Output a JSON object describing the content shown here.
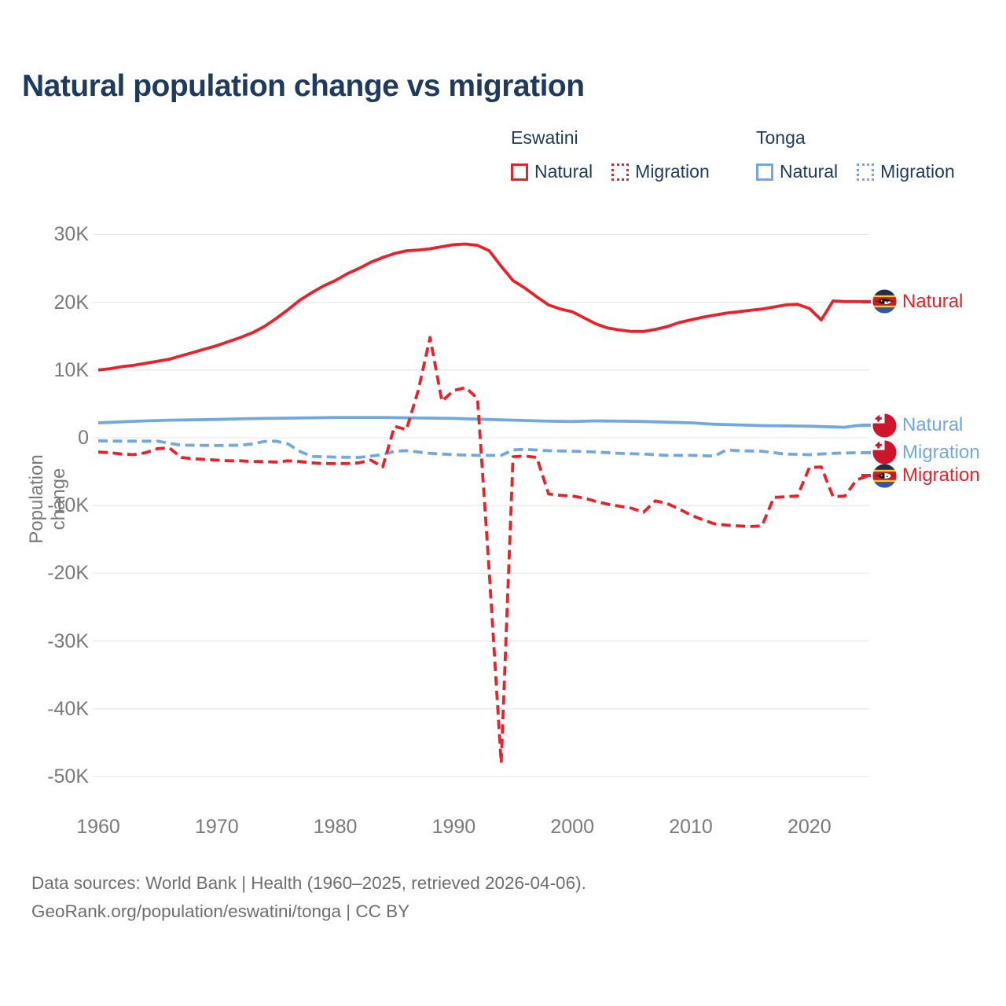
{
  "title": "Natural population change vs migration",
  "legend": {
    "groups": [
      {
        "label": "Eswatini",
        "items": [
          {
            "label": "Natural",
            "style": "solid",
            "color": "#e8212a"
          },
          {
            "label": "Migration",
            "style": "dotted",
            "color": "#e8212a"
          }
        ]
      },
      {
        "label": "Tonga",
        "items": [
          {
            "label": "Natural",
            "style": "solid",
            "color": "#72a8e0"
          },
          {
            "label": "Migration",
            "style": "dotted",
            "color": "#72a8e0"
          }
        ]
      }
    ]
  },
  "footer": {
    "line1": "Data sources: World Bank | Health (1960–2025, retrieved 2026-04-06).",
    "line2": "GeoRank.org/population/eswatini/tonga | CC BY"
  },
  "colors": {
    "red": "#e8212a",
    "blue": "#72a8e0",
    "title_text": "#1e3a5c",
    "axis_text": "#7a7a7a",
    "grid": "#e9e9e9",
    "footer_text": "#6e6e6e"
  },
  "chart_data": {
    "type": "line",
    "title": "Natural population change vs migration",
    "xlabel": "",
    "ylabel": "Population change",
    "units": "thousands of people per year",
    "grid": "horizontal",
    "legend_position": "top-right",
    "xlim": [
      1960,
      2025
    ],
    "ylim": [
      -52,
      32
    ],
    "x_ticks": [
      1960,
      1970,
      1980,
      1990,
      2000,
      2010,
      2020
    ],
    "y_ticks": [
      {
        "v": 30,
        "label": "30K"
      },
      {
        "v": 20,
        "label": "20K"
      },
      {
        "v": 10,
        "label": "10K"
      },
      {
        "v": 0,
        "label": "0"
      },
      {
        "v": -10,
        "label": "-10K"
      },
      {
        "v": -20,
        "label": "-20K"
      },
      {
        "v": -30,
        "label": "-30K"
      },
      {
        "v": -40,
        "label": "-40K"
      },
      {
        "v": -50,
        "label": "-50K"
      }
    ],
    "series": [
      {
        "name": "Eswatini Natural",
        "country": "Eswatini",
        "metric": "Natural",
        "color": "#e8212a",
        "dash": false,
        "end_label": "Natural",
        "flag": "eswatini",
        "points": [
          [
            1960,
            10.0
          ],
          [
            1961,
            10.2
          ],
          [
            1962,
            10.5
          ],
          [
            1963,
            10.7
          ],
          [
            1964,
            11.0
          ],
          [
            1965,
            11.3
          ],
          [
            1966,
            11.6
          ],
          [
            1967,
            12.1
          ],
          [
            1968,
            12.6
          ],
          [
            1969,
            13.1
          ],
          [
            1970,
            13.6
          ],
          [
            1971,
            14.2
          ],
          [
            1972,
            14.8
          ],
          [
            1973,
            15.5
          ],
          [
            1974,
            16.4
          ],
          [
            1975,
            17.6
          ],
          [
            1976,
            18.9
          ],
          [
            1977,
            20.3
          ],
          [
            1978,
            21.4
          ],
          [
            1979,
            22.4
          ],
          [
            1980,
            23.2
          ],
          [
            1981,
            24.2
          ],
          [
            1982,
            25.0
          ],
          [
            1983,
            25.9
          ],
          [
            1984,
            26.6
          ],
          [
            1985,
            27.2
          ],
          [
            1986,
            27.6
          ],
          [
            1987,
            27.7
          ],
          [
            1988,
            27.9
          ],
          [
            1989,
            28.2
          ],
          [
            1990,
            28.5
          ],
          [
            1991,
            28.6
          ],
          [
            1992,
            28.4
          ],
          [
            1993,
            27.6
          ],
          [
            1994,
            25.3
          ],
          [
            1995,
            23.2
          ],
          [
            1996,
            22.1
          ],
          [
            1997,
            20.8
          ],
          [
            1998,
            19.6
          ],
          [
            1999,
            19.0
          ],
          [
            2000,
            18.6
          ],
          [
            2001,
            17.7
          ],
          [
            2002,
            16.8
          ],
          [
            2003,
            16.2
          ],
          [
            2004,
            15.9
          ],
          [
            2005,
            15.7
          ],
          [
            2006,
            15.7
          ],
          [
            2007,
            16.0
          ],
          [
            2008,
            16.4
          ],
          [
            2009,
            17.0
          ],
          [
            2010,
            17.4
          ],
          [
            2011,
            17.8
          ],
          [
            2012,
            18.1
          ],
          [
            2013,
            18.4
          ],
          [
            2014,
            18.6
          ],
          [
            2015,
            18.8
          ],
          [
            2016,
            19.0
          ],
          [
            2017,
            19.3
          ],
          [
            2018,
            19.6
          ],
          [
            2019,
            19.7
          ],
          [
            2020,
            19.1
          ],
          [
            2021,
            17.4
          ],
          [
            2022,
            20.2
          ],
          [
            2023,
            20.1
          ],
          [
            2024,
            20.1
          ],
          [
            2025,
            20.1
          ]
        ]
      },
      {
        "name": "Eswatini Migration",
        "country": "Eswatini",
        "metric": "Migration",
        "color": "#e8212a",
        "dash": true,
        "end_label": "Migration",
        "flag": "eswatini",
        "points": [
          [
            1960,
            -2.1
          ],
          [
            1961,
            -2.2
          ],
          [
            1962,
            -2.4
          ],
          [
            1963,
            -2.5
          ],
          [
            1964,
            -2.2
          ],
          [
            1965,
            -1.6
          ],
          [
            1966,
            -1.5
          ],
          [
            1967,
            -2.9
          ],
          [
            1968,
            -3.1
          ],
          [
            1969,
            -3.2
          ],
          [
            1970,
            -3.3
          ],
          [
            1971,
            -3.4
          ],
          [
            1972,
            -3.4
          ],
          [
            1973,
            -3.5
          ],
          [
            1974,
            -3.5
          ],
          [
            1975,
            -3.6
          ],
          [
            1976,
            -3.4
          ],
          [
            1977,
            -3.5
          ],
          [
            1978,
            -3.7
          ],
          [
            1979,
            -3.8
          ],
          [
            1980,
            -3.8
          ],
          [
            1981,
            -3.8
          ],
          [
            1982,
            -3.7
          ],
          [
            1983,
            -3.3
          ],
          [
            1984,
            -4.3
          ],
          [
            1985,
            1.7
          ],
          [
            1986,
            1.2
          ],
          [
            1987,
            7.0
          ],
          [
            1988,
            14.8
          ],
          [
            1989,
            5.4
          ],
          [
            1990,
            7.0
          ],
          [
            1991,
            7.4
          ],
          [
            1992,
            5.8
          ],
          [
            1993,
            -20.0
          ],
          [
            1994,
            -48.0
          ],
          [
            1995,
            -2.8
          ],
          [
            1996,
            -2.7
          ],
          [
            1997,
            -2.9
          ],
          [
            1998,
            -8.3
          ],
          [
            1999,
            -8.5
          ],
          [
            2000,
            -8.6
          ],
          [
            2001,
            -8.9
          ],
          [
            2002,
            -9.4
          ],
          [
            2003,
            -9.8
          ],
          [
            2004,
            -10.1
          ],
          [
            2005,
            -10.4
          ],
          [
            2006,
            -11.0
          ],
          [
            2007,
            -9.3
          ],
          [
            2008,
            -9.7
          ],
          [
            2009,
            -10.5
          ],
          [
            2010,
            -11.4
          ],
          [
            2011,
            -12.1
          ],
          [
            2012,
            -12.7
          ],
          [
            2013,
            -12.9
          ],
          [
            2014,
            -13.0
          ],
          [
            2015,
            -13.1
          ],
          [
            2016,
            -13.0
          ],
          [
            2017,
            -8.8
          ],
          [
            2018,
            -8.7
          ],
          [
            2019,
            -8.6
          ],
          [
            2020,
            -4.4
          ],
          [
            2021,
            -4.3
          ],
          [
            2022,
            -8.7
          ],
          [
            2023,
            -8.6
          ],
          [
            2024,
            -6.2
          ],
          [
            2025,
            -5.6
          ]
        ]
      },
      {
        "name": "Tonga Natural",
        "country": "Tonga",
        "metric": "Natural",
        "color": "#72a8e0",
        "dash": false,
        "end_label": "Natural",
        "flag": "tonga",
        "points": [
          [
            1960,
            2.2
          ],
          [
            1962,
            2.35
          ],
          [
            1964,
            2.5
          ],
          [
            1966,
            2.6
          ],
          [
            1968,
            2.65
          ],
          [
            1970,
            2.7
          ],
          [
            1972,
            2.8
          ],
          [
            1974,
            2.85
          ],
          [
            1976,
            2.9
          ],
          [
            1978,
            2.95
          ],
          [
            1980,
            3.0
          ],
          [
            1982,
            3.0
          ],
          [
            1984,
            3.0
          ],
          [
            1986,
            2.95
          ],
          [
            1988,
            2.9
          ],
          [
            1990,
            2.85
          ],
          [
            1992,
            2.75
          ],
          [
            1994,
            2.65
          ],
          [
            1996,
            2.55
          ],
          [
            1998,
            2.45
          ],
          [
            2000,
            2.4
          ],
          [
            2002,
            2.5
          ],
          [
            2004,
            2.45
          ],
          [
            2006,
            2.4
          ],
          [
            2008,
            2.3
          ],
          [
            2010,
            2.2
          ],
          [
            2012,
            2.0
          ],
          [
            2014,
            1.9
          ],
          [
            2016,
            1.8
          ],
          [
            2018,
            1.75
          ],
          [
            2020,
            1.7
          ],
          [
            2022,
            1.6
          ],
          [
            2023,
            1.55
          ],
          [
            2024,
            1.8
          ],
          [
            2025,
            1.85
          ]
        ]
      },
      {
        "name": "Tonga Migration",
        "country": "Tonga",
        "metric": "Migration",
        "color": "#72a8e0",
        "dash": true,
        "end_label": "Migration",
        "flag": "tonga",
        "points": [
          [
            1960,
            -0.45
          ],
          [
            1962,
            -0.5
          ],
          [
            1964,
            -0.5
          ],
          [
            1965,
            -0.5
          ],
          [
            1966,
            -0.8
          ],
          [
            1967,
            -1.1
          ],
          [
            1968,
            -1.1
          ],
          [
            1970,
            -1.15
          ],
          [
            1972,
            -1.1
          ],
          [
            1973,
            -0.9
          ],
          [
            1974,
            -0.55
          ],
          [
            1975,
            -0.5
          ],
          [
            1976,
            -0.9
          ],
          [
            1977,
            -2.0
          ],
          [
            1978,
            -2.75
          ],
          [
            1980,
            -2.85
          ],
          [
            1982,
            -2.9
          ],
          [
            1984,
            -2.5
          ],
          [
            1985,
            -2.0
          ],
          [
            1986,
            -1.9
          ],
          [
            1988,
            -2.3
          ],
          [
            1990,
            -2.5
          ],
          [
            1992,
            -2.6
          ],
          [
            1994,
            -2.6
          ],
          [
            1995,
            -1.8
          ],
          [
            1996,
            -1.7
          ],
          [
            1998,
            -1.9
          ],
          [
            2000,
            -2.0
          ],
          [
            2002,
            -2.1
          ],
          [
            2004,
            -2.3
          ],
          [
            2006,
            -2.4
          ],
          [
            2008,
            -2.6
          ],
          [
            2010,
            -2.6
          ],
          [
            2012,
            -2.7
          ],
          [
            2013,
            -1.8
          ],
          [
            2014,
            -1.9
          ],
          [
            2016,
            -2.0
          ],
          [
            2018,
            -2.4
          ],
          [
            2020,
            -2.5
          ],
          [
            2022,
            -2.3
          ],
          [
            2024,
            -2.2
          ],
          [
            2025,
            -2.2
          ]
        ]
      }
    ]
  }
}
